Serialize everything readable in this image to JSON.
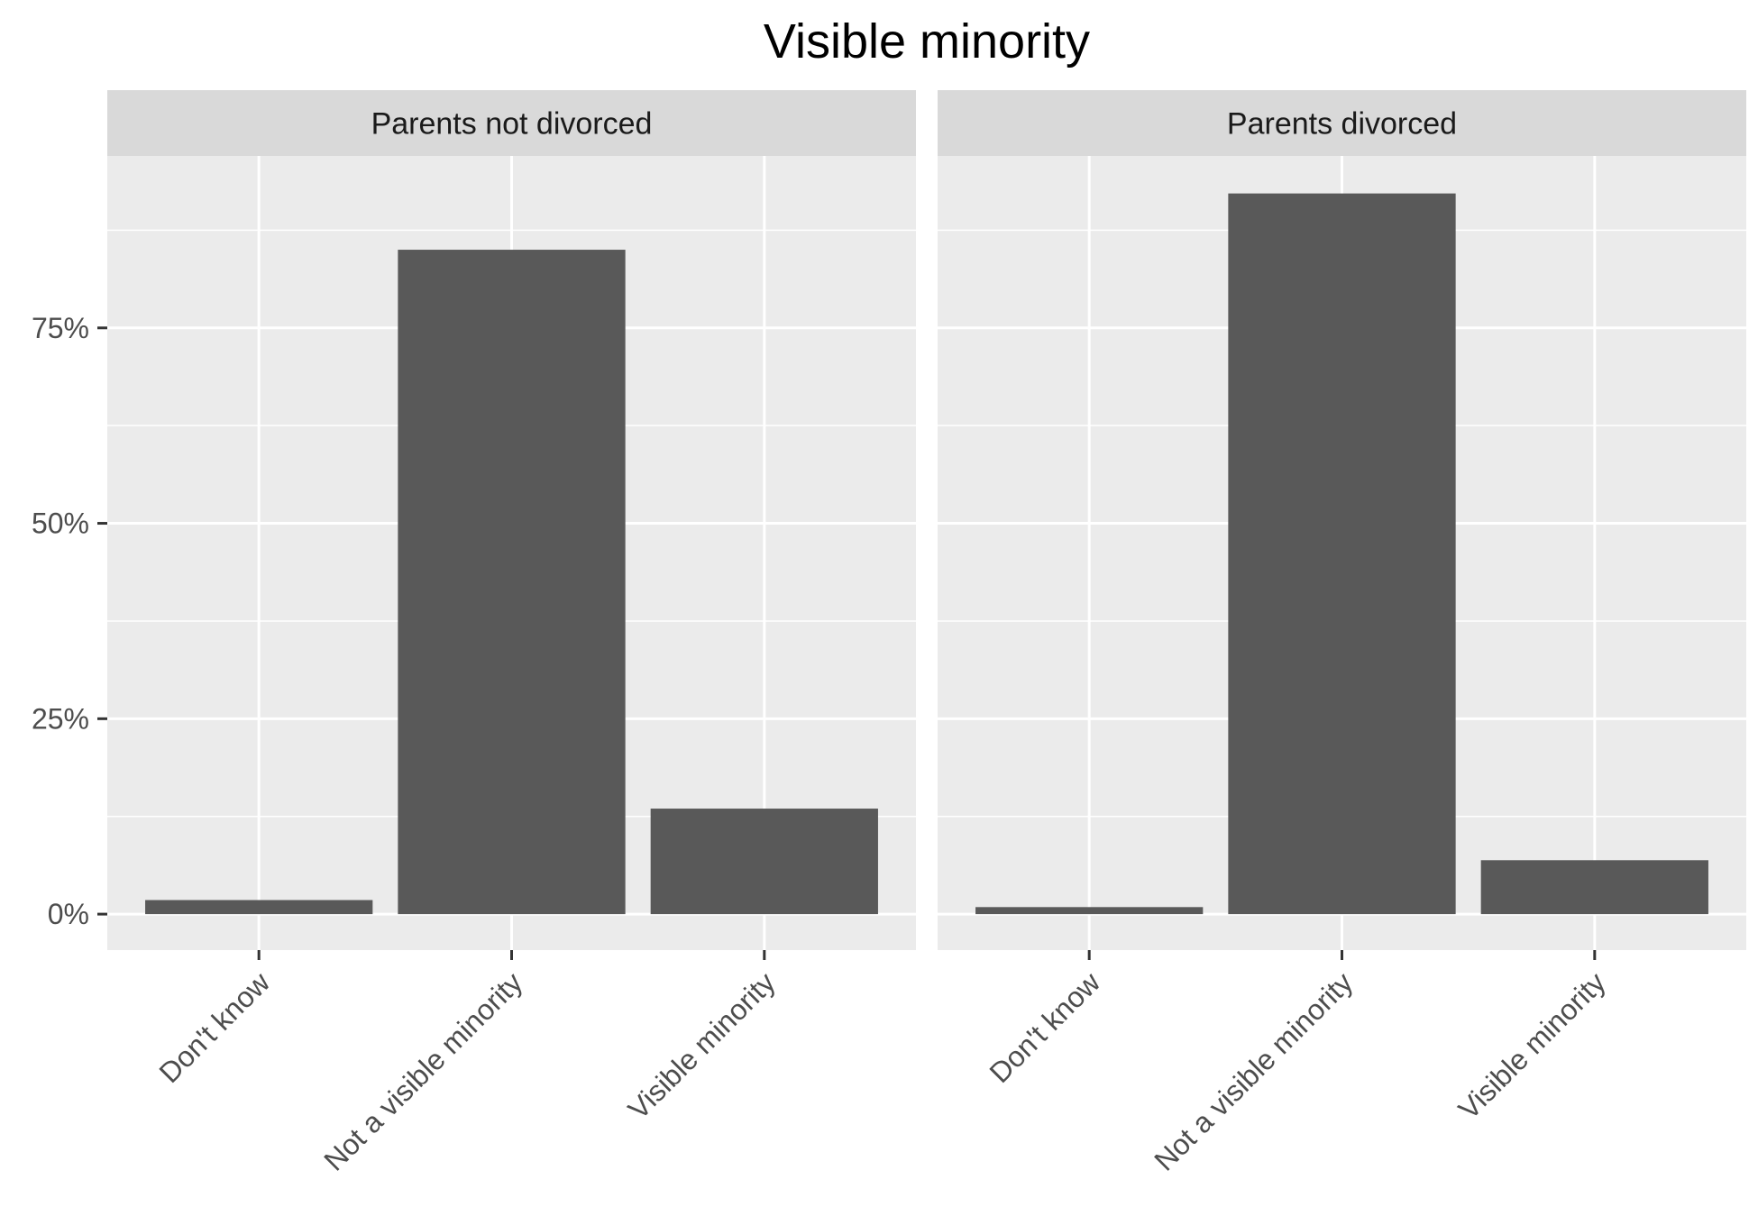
{
  "chart_data": {
    "type": "bar",
    "title": "Visible minority",
    "xlabel": "",
    "ylabel": "",
    "categories": [
      "Don't know",
      "Not a visible minority",
      "Visible minority"
    ],
    "y_ticks": [
      "0%",
      "25%",
      "50%",
      "75%"
    ],
    "ylim": [
      -0.046,
      0.97
    ],
    "grid": true,
    "legend": "none",
    "bar_color": "#595959",
    "panel_background": "#ebebeb",
    "strip_background": "#d9d9d9",
    "grid_color": "#ffffff",
    "panels": [
      {
        "name": "Parents not divorced",
        "values": [
          0.018,
          0.85,
          0.135
        ]
      },
      {
        "name": "Parents divorced",
        "values": [
          0.009,
          0.922,
          0.069
        ]
      }
    ]
  }
}
